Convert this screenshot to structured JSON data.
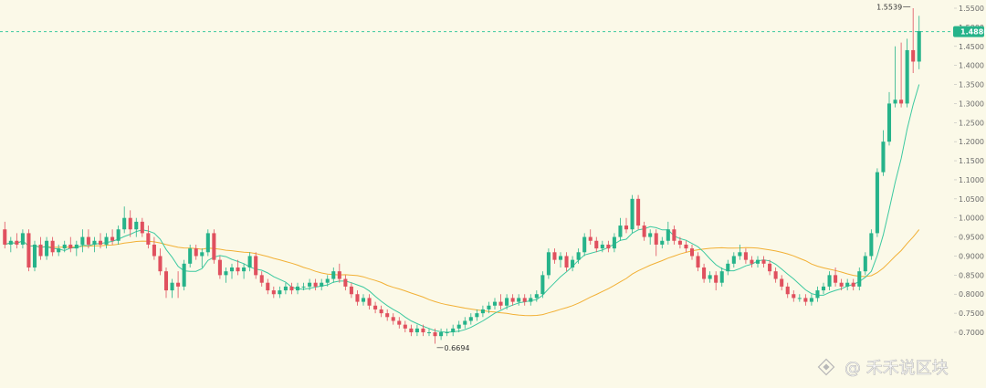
{
  "chart_data": {
    "type": "candlestick",
    "y_axis": {
      "position": "right",
      "ticks": [
        "1.5500",
        "1.5000",
        "1.4500",
        "1.4000",
        "1.3500",
        "1.3000",
        "1.2500",
        "1.2000",
        "1.1500",
        "1.1000",
        "1.0500",
        "1.0000",
        "0.9500",
        "0.9000",
        "0.8500",
        "0.8000",
        "0.7500",
        "0.7000"
      ],
      "ylim": [
        0.66,
        1.56
      ]
    },
    "current_price": "1.4886",
    "current_price_value": 1.4886,
    "high_label": "1.5539",
    "high_value": 1.5539,
    "low_label": "0.6694",
    "low_value": 0.6694,
    "candles": [
      {
        "o": 0.97,
        "h": 0.99,
        "l": 0.92,
        "c": 0.93
      },
      {
        "o": 0.93,
        "h": 0.95,
        "l": 0.91,
        "c": 0.94
      },
      {
        "o": 0.94,
        "h": 0.96,
        "l": 0.92,
        "c": 0.93
      },
      {
        "o": 0.93,
        "h": 0.97,
        "l": 0.92,
        "c": 0.96
      },
      {
        "o": 0.96,
        "h": 0.97,
        "l": 0.86,
        "c": 0.87
      },
      {
        "o": 0.87,
        "h": 0.94,
        "l": 0.86,
        "c": 0.93
      },
      {
        "o": 0.93,
        "h": 0.95,
        "l": 0.89,
        "c": 0.9
      },
      {
        "o": 0.9,
        "h": 0.95,
        "l": 0.89,
        "c": 0.94
      },
      {
        "o": 0.94,
        "h": 0.95,
        "l": 0.9,
        "c": 0.91
      },
      {
        "o": 0.91,
        "h": 0.93,
        "l": 0.9,
        "c": 0.92
      },
      {
        "o": 0.92,
        "h": 0.94,
        "l": 0.91,
        "c": 0.93
      },
      {
        "o": 0.93,
        "h": 0.95,
        "l": 0.91,
        "c": 0.92
      },
      {
        "o": 0.92,
        "h": 0.94,
        "l": 0.9,
        "c": 0.93
      },
      {
        "o": 0.93,
        "h": 0.97,
        "l": 0.91,
        "c": 0.95
      },
      {
        "o": 0.95,
        "h": 0.97,
        "l": 0.92,
        "c": 0.93
      },
      {
        "o": 0.93,
        "h": 0.95,
        "l": 0.91,
        "c": 0.94
      },
      {
        "o": 0.94,
        "h": 0.96,
        "l": 0.92,
        "c": 0.93
      },
      {
        "o": 0.93,
        "h": 0.96,
        "l": 0.92,
        "c": 0.95
      },
      {
        "o": 0.95,
        "h": 0.97,
        "l": 0.93,
        "c": 0.94
      },
      {
        "o": 0.94,
        "h": 0.98,
        "l": 0.93,
        "c": 0.97
      },
      {
        "o": 0.97,
        "h": 1.03,
        "l": 0.96,
        "c": 1.0
      },
      {
        "o": 1.0,
        "h": 1.02,
        "l": 0.95,
        "c": 0.97
      },
      {
        "o": 0.97,
        "h": 1.0,
        "l": 0.95,
        "c": 0.99
      },
      {
        "o": 0.99,
        "h": 1.0,
        "l": 0.95,
        "c": 0.96
      },
      {
        "o": 0.96,
        "h": 0.98,
        "l": 0.92,
        "c": 0.93
      },
      {
        "o": 0.93,
        "h": 0.95,
        "l": 0.89,
        "c": 0.9
      },
      {
        "o": 0.9,
        "h": 0.92,
        "l": 0.85,
        "c": 0.86
      },
      {
        "o": 0.86,
        "h": 0.87,
        "l": 0.79,
        "c": 0.81
      },
      {
        "o": 0.81,
        "h": 0.84,
        "l": 0.79,
        "c": 0.83
      },
      {
        "o": 0.83,
        "h": 0.86,
        "l": 0.79,
        "c": 0.82
      },
      {
        "o": 0.82,
        "h": 0.89,
        "l": 0.81,
        "c": 0.88
      },
      {
        "o": 0.88,
        "h": 0.93,
        "l": 0.87,
        "c": 0.92
      },
      {
        "o": 0.92,
        "h": 0.93,
        "l": 0.89,
        "c": 0.9
      },
      {
        "o": 0.9,
        "h": 0.92,
        "l": 0.87,
        "c": 0.91
      },
      {
        "o": 0.91,
        "h": 0.97,
        "l": 0.9,
        "c": 0.96
      },
      {
        "o": 0.96,
        "h": 0.97,
        "l": 0.88,
        "c": 0.89
      },
      {
        "o": 0.89,
        "h": 0.9,
        "l": 0.84,
        "c": 0.85
      },
      {
        "o": 0.85,
        "h": 0.87,
        "l": 0.83,
        "c": 0.86
      },
      {
        "o": 0.86,
        "h": 0.88,
        "l": 0.84,
        "c": 0.87
      },
      {
        "o": 0.87,
        "h": 0.89,
        "l": 0.85,
        "c": 0.86
      },
      {
        "o": 0.86,
        "h": 0.88,
        "l": 0.84,
        "c": 0.87
      },
      {
        "o": 0.87,
        "h": 0.91,
        "l": 0.86,
        "c": 0.9
      },
      {
        "o": 0.9,
        "h": 0.91,
        "l": 0.84,
        "c": 0.85
      },
      {
        "o": 0.85,
        "h": 0.86,
        "l": 0.82,
        "c": 0.83
      },
      {
        "o": 0.83,
        "h": 0.84,
        "l": 0.8,
        "c": 0.81
      },
      {
        "o": 0.81,
        "h": 0.82,
        "l": 0.79,
        "c": 0.8
      },
      {
        "o": 0.8,
        "h": 0.82,
        "l": 0.79,
        "c": 0.81
      },
      {
        "o": 0.81,
        "h": 0.83,
        "l": 0.8,
        "c": 0.82
      },
      {
        "o": 0.82,
        "h": 0.83,
        "l": 0.8,
        "c": 0.81
      },
      {
        "o": 0.81,
        "h": 0.83,
        "l": 0.8,
        "c": 0.82
      },
      {
        "o": 0.82,
        "h": 0.83,
        "l": 0.81,
        "c": 0.82
      },
      {
        "o": 0.82,
        "h": 0.84,
        "l": 0.81,
        "c": 0.83
      },
      {
        "o": 0.83,
        "h": 0.84,
        "l": 0.81,
        "c": 0.82
      },
      {
        "o": 0.82,
        "h": 0.84,
        "l": 0.81,
        "c": 0.83
      },
      {
        "o": 0.83,
        "h": 0.85,
        "l": 0.82,
        "c": 0.84
      },
      {
        "o": 0.84,
        "h": 0.87,
        "l": 0.83,
        "c": 0.86
      },
      {
        "o": 0.86,
        "h": 0.88,
        "l": 0.83,
        "c": 0.84
      },
      {
        "o": 0.84,
        "h": 0.85,
        "l": 0.81,
        "c": 0.82
      },
      {
        "o": 0.82,
        "h": 0.83,
        "l": 0.79,
        "c": 0.8
      },
      {
        "o": 0.8,
        "h": 0.81,
        "l": 0.77,
        "c": 0.78
      },
      {
        "o": 0.78,
        "h": 0.8,
        "l": 0.77,
        "c": 0.79
      },
      {
        "o": 0.79,
        "h": 0.8,
        "l": 0.76,
        "c": 0.77
      },
      {
        "o": 0.77,
        "h": 0.78,
        "l": 0.75,
        "c": 0.76
      },
      {
        "o": 0.76,
        "h": 0.77,
        "l": 0.74,
        "c": 0.75
      },
      {
        "o": 0.75,
        "h": 0.76,
        "l": 0.73,
        "c": 0.74
      },
      {
        "o": 0.74,
        "h": 0.75,
        "l": 0.72,
        "c": 0.73
      },
      {
        "o": 0.73,
        "h": 0.74,
        "l": 0.71,
        "c": 0.72
      },
      {
        "o": 0.72,
        "h": 0.73,
        "l": 0.7,
        "c": 0.71
      },
      {
        "o": 0.71,
        "h": 0.72,
        "l": 0.69,
        "c": 0.7
      },
      {
        "o": 0.7,
        "h": 0.72,
        "l": 0.69,
        "c": 0.71
      },
      {
        "o": 0.71,
        "h": 0.72,
        "l": 0.69,
        "c": 0.7
      },
      {
        "o": 0.7,
        "h": 0.71,
        "l": 0.69,
        "c": 0.7
      },
      {
        "o": 0.7,
        "h": 0.71,
        "l": 0.67,
        "c": 0.69
      },
      {
        "o": 0.69,
        "h": 0.71,
        "l": 0.68,
        "c": 0.7
      },
      {
        "o": 0.7,
        "h": 0.71,
        "l": 0.69,
        "c": 0.7
      },
      {
        "o": 0.7,
        "h": 0.72,
        "l": 0.69,
        "c": 0.71
      },
      {
        "o": 0.71,
        "h": 0.73,
        "l": 0.7,
        "c": 0.72
      },
      {
        "o": 0.72,
        "h": 0.74,
        "l": 0.71,
        "c": 0.73
      },
      {
        "o": 0.73,
        "h": 0.75,
        "l": 0.72,
        "c": 0.74
      },
      {
        "o": 0.74,
        "h": 0.76,
        "l": 0.73,
        "c": 0.75
      },
      {
        "o": 0.75,
        "h": 0.77,
        "l": 0.74,
        "c": 0.76
      },
      {
        "o": 0.76,
        "h": 0.78,
        "l": 0.75,
        "c": 0.77
      },
      {
        "o": 0.77,
        "h": 0.79,
        "l": 0.76,
        "c": 0.78
      },
      {
        "o": 0.78,
        "h": 0.8,
        "l": 0.76,
        "c": 0.77
      },
      {
        "o": 0.77,
        "h": 0.8,
        "l": 0.76,
        "c": 0.79
      },
      {
        "o": 0.79,
        "h": 0.8,
        "l": 0.77,
        "c": 0.78
      },
      {
        "o": 0.78,
        "h": 0.8,
        "l": 0.77,
        "c": 0.79
      },
      {
        "o": 0.79,
        "h": 0.8,
        "l": 0.77,
        "c": 0.78
      },
      {
        "o": 0.78,
        "h": 0.8,
        "l": 0.77,
        "c": 0.79
      },
      {
        "o": 0.79,
        "h": 0.81,
        "l": 0.78,
        "c": 0.8
      },
      {
        "o": 0.8,
        "h": 0.86,
        "l": 0.79,
        "c": 0.85
      },
      {
        "o": 0.85,
        "h": 0.92,
        "l": 0.84,
        "c": 0.91
      },
      {
        "o": 0.91,
        "h": 0.92,
        "l": 0.88,
        "c": 0.89
      },
      {
        "o": 0.89,
        "h": 0.91,
        "l": 0.87,
        "c": 0.9
      },
      {
        "o": 0.9,
        "h": 0.91,
        "l": 0.86,
        "c": 0.87
      },
      {
        "o": 0.87,
        "h": 0.9,
        "l": 0.86,
        "c": 0.89
      },
      {
        "o": 0.89,
        "h": 0.92,
        "l": 0.88,
        "c": 0.91
      },
      {
        "o": 0.91,
        "h": 0.96,
        "l": 0.9,
        "c": 0.95
      },
      {
        "o": 0.95,
        "h": 0.97,
        "l": 0.93,
        "c": 0.94
      },
      {
        "o": 0.94,
        "h": 0.95,
        "l": 0.91,
        "c": 0.92
      },
      {
        "o": 0.92,
        "h": 0.94,
        "l": 0.91,
        "c": 0.93
      },
      {
        "o": 0.93,
        "h": 0.94,
        "l": 0.91,
        "c": 0.92
      },
      {
        "o": 0.92,
        "h": 0.96,
        "l": 0.91,
        "c": 0.95
      },
      {
        "o": 0.95,
        "h": 1.0,
        "l": 0.94,
        "c": 0.98
      },
      {
        "o": 0.98,
        "h": 1.0,
        "l": 0.96,
        "c": 0.97
      },
      {
        "o": 0.97,
        "h": 1.06,
        "l": 0.96,
        "c": 1.05
      },
      {
        "o": 1.05,
        "h": 1.06,
        "l": 0.97,
        "c": 0.98
      },
      {
        "o": 0.98,
        "h": 0.99,
        "l": 0.94,
        "c": 0.95
      },
      {
        "o": 0.95,
        "h": 0.97,
        "l": 0.93,
        "c": 0.96
      },
      {
        "o": 0.96,
        "h": 0.97,
        "l": 0.9,
        "c": 0.93
      },
      {
        "o": 0.93,
        "h": 0.95,
        "l": 0.92,
        "c": 0.94
      },
      {
        "o": 0.94,
        "h": 0.99,
        "l": 0.93,
        "c": 0.97
      },
      {
        "o": 0.97,
        "h": 0.98,
        "l": 0.93,
        "c": 0.94
      },
      {
        "o": 0.94,
        "h": 0.95,
        "l": 0.92,
        "c": 0.93
      },
      {
        "o": 0.93,
        "h": 0.94,
        "l": 0.91,
        "c": 0.92
      },
      {
        "o": 0.92,
        "h": 0.93,
        "l": 0.89,
        "c": 0.9
      },
      {
        "o": 0.9,
        "h": 0.91,
        "l": 0.86,
        "c": 0.87
      },
      {
        "o": 0.87,
        "h": 0.88,
        "l": 0.83,
        "c": 0.84
      },
      {
        "o": 0.84,
        "h": 0.86,
        "l": 0.83,
        "c": 0.85
      },
      {
        "o": 0.85,
        "h": 0.86,
        "l": 0.81,
        "c": 0.83
      },
      {
        "o": 0.83,
        "h": 0.87,
        "l": 0.82,
        "c": 0.86
      },
      {
        "o": 0.86,
        "h": 0.89,
        "l": 0.85,
        "c": 0.88
      },
      {
        "o": 0.88,
        "h": 0.91,
        "l": 0.87,
        "c": 0.9
      },
      {
        "o": 0.9,
        "h": 0.93,
        "l": 0.89,
        "c": 0.91
      },
      {
        "o": 0.91,
        "h": 0.92,
        "l": 0.88,
        "c": 0.89
      },
      {
        "o": 0.89,
        "h": 0.9,
        "l": 0.87,
        "c": 0.88
      },
      {
        "o": 0.88,
        "h": 0.9,
        "l": 0.87,
        "c": 0.89
      },
      {
        "o": 0.89,
        "h": 0.9,
        "l": 0.87,
        "c": 0.88
      },
      {
        "o": 0.88,
        "h": 0.89,
        "l": 0.85,
        "c": 0.86
      },
      {
        "o": 0.86,
        "h": 0.87,
        "l": 0.83,
        "c": 0.84
      },
      {
        "o": 0.84,
        "h": 0.85,
        "l": 0.81,
        "c": 0.82
      },
      {
        "o": 0.82,
        "h": 0.83,
        "l": 0.79,
        "c": 0.8
      },
      {
        "o": 0.8,
        "h": 0.81,
        "l": 0.78,
        "c": 0.79
      },
      {
        "o": 0.79,
        "h": 0.8,
        "l": 0.78,
        "c": 0.79
      },
      {
        "o": 0.79,
        "h": 0.8,
        "l": 0.77,
        "c": 0.78
      },
      {
        "o": 0.78,
        "h": 0.8,
        "l": 0.77,
        "c": 0.79
      },
      {
        "o": 0.79,
        "h": 0.82,
        "l": 0.78,
        "c": 0.81
      },
      {
        "o": 0.81,
        "h": 0.83,
        "l": 0.8,
        "c": 0.82
      },
      {
        "o": 0.82,
        "h": 0.86,
        "l": 0.81,
        "c": 0.85
      },
      {
        "o": 0.85,
        "h": 0.87,
        "l": 0.82,
        "c": 0.83
      },
      {
        "o": 0.83,
        "h": 0.84,
        "l": 0.81,
        "c": 0.82
      },
      {
        "o": 0.82,
        "h": 0.84,
        "l": 0.81,
        "c": 0.83
      },
      {
        "o": 0.83,
        "h": 0.84,
        "l": 0.81,
        "c": 0.82
      },
      {
        "o": 0.82,
        "h": 0.87,
        "l": 0.81,
        "c": 0.86
      },
      {
        "o": 0.86,
        "h": 0.91,
        "l": 0.85,
        "c": 0.9
      },
      {
        "o": 0.9,
        "h": 0.97,
        "l": 0.89,
        "c": 0.96
      },
      {
        "o": 0.96,
        "h": 1.13,
        "l": 0.95,
        "c": 1.12
      },
      {
        "o": 1.12,
        "h": 1.23,
        "l": 1.11,
        "c": 1.2
      },
      {
        "o": 1.2,
        "h": 1.33,
        "l": 1.19,
        "c": 1.3
      },
      {
        "o": 1.3,
        "h": 1.45,
        "l": 1.29,
        "c": 1.31
      },
      {
        "o": 1.31,
        "h": 1.46,
        "l": 1.29,
        "c": 1.3
      },
      {
        "o": 1.3,
        "h": 1.47,
        "l": 1.29,
        "c": 1.44
      },
      {
        "o": 1.44,
        "h": 1.55,
        "l": 1.38,
        "c": 1.41
      },
      {
        "o": 1.41,
        "h": 1.53,
        "l": 1.39,
        "c": 1.49
      }
    ],
    "ma_fast_color": "#3cc9a0",
    "ma_slow_color": "#f2b035",
    "up_color": "#26b38a",
    "down_color": "#e0505e",
    "grid": false
  },
  "watermark": {
    "text": "@ 禾禾说区块"
  }
}
